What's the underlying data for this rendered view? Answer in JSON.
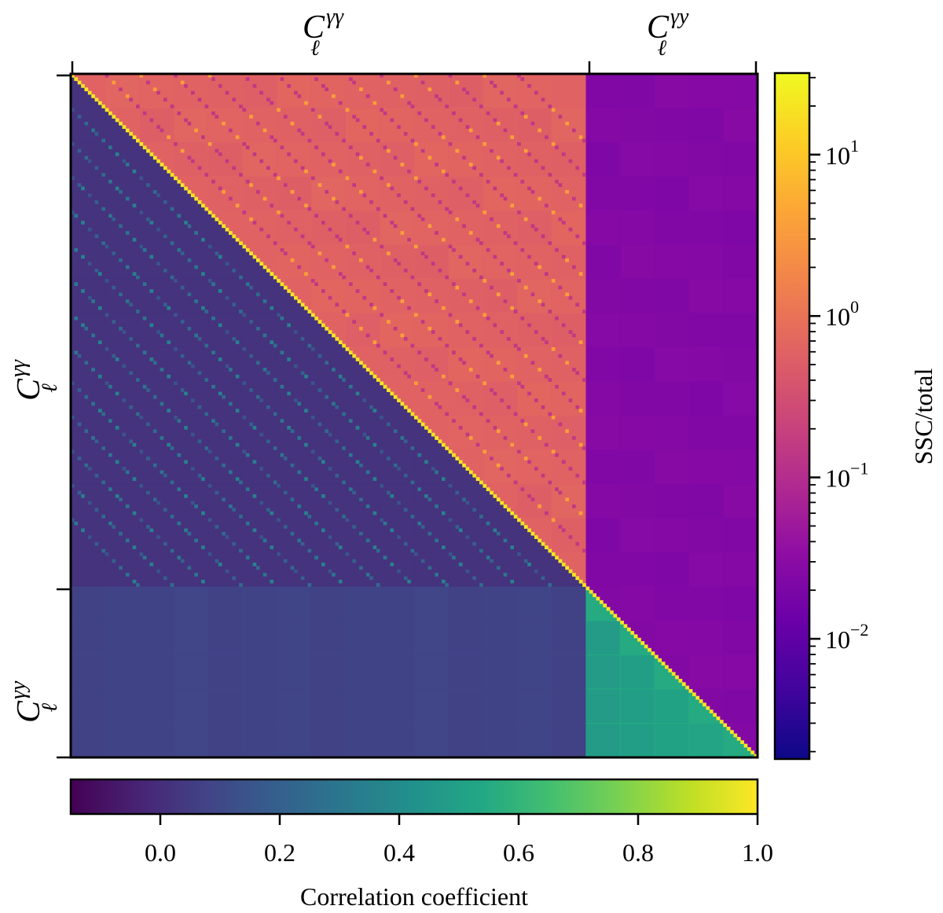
{
  "chart_data": {
    "type": "heatmap",
    "description_free": true,
    "upper_triangle": {
      "quantity": "SSC/total",
      "scale": "log",
      "colormap": "plasma",
      "colorbar": {
        "label": "SSC/total",
        "range": [
          0.0018,
          32
        ],
        "ticks": [
          {
            "value": 10,
            "base": "10",
            "exp": "1"
          },
          {
            "value": 1,
            "base": "10",
            "exp": "0"
          },
          {
            "value": 0.1,
            "base": "10",
            "exp": "−1"
          },
          {
            "value": 0.01,
            "base": "10",
            "exp": "−2"
          }
        ],
        "placement": "right"
      },
      "block_levels": {
        "gg_gg": 0.6,
        "gg_gy": 0.025,
        "diagonal": 20
      }
    },
    "lower_triangle": {
      "quantity": "Correlation coefficient",
      "scale": "linear",
      "colormap": "viridis",
      "colorbar": {
        "label": "Correlation coefficient",
        "range": [
          -0.15,
          1.0
        ],
        "ticks": [
          "0.0",
          "0.2",
          "0.4",
          "0.6",
          "0.8",
          "1.0"
        ],
        "placement": "bottom"
      },
      "block_levels": {
        "gg_gg": 0.02,
        "gy_gg": 0.08,
        "gy_gy": 0.55,
        "diagonal": 1.0
      }
    },
    "blocks": {
      "gg_size": 150,
      "gy_size": 50
    },
    "axis_labels": {
      "top": [
        {
          "base": "C",
          "sub": "ℓ",
          "sup": "γγ"
        },
        {
          "base": "C",
          "sub": "ℓ",
          "sup": "γy"
        }
      ],
      "left": [
        {
          "base": "C",
          "sub": "ℓ",
          "sup": "γγ"
        },
        {
          "base": "C",
          "sub": "ℓ",
          "sup": "γy"
        }
      ]
    }
  }
}
